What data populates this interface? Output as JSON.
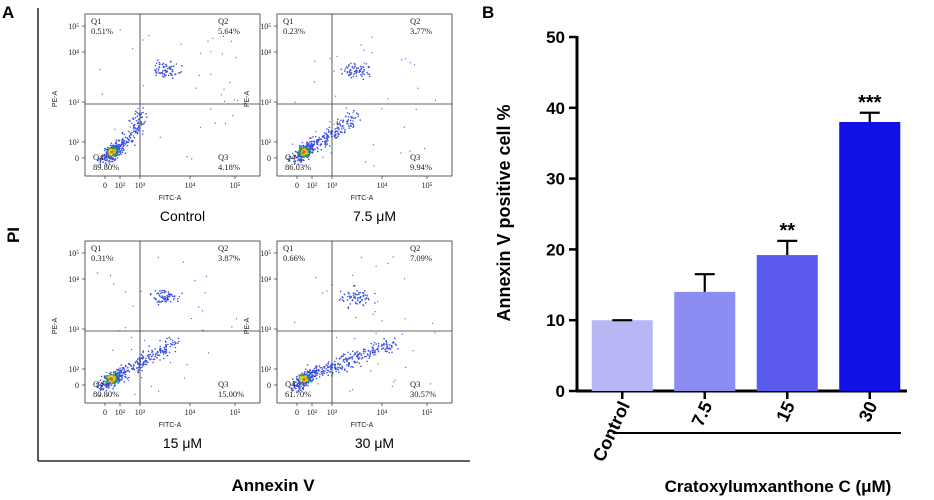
{
  "figure": {
    "panel_a_letter": "A",
    "panel_b_letter": "B"
  },
  "chart_data": [
    {
      "type": "scatter",
      "subtype": "flow-cytometry-quadrant-plots",
      "ylabel": "PI",
      "xlabel": "Annexin V",
      "plot_x_axis_name": "FITC-A",
      "plot_y_axis_name": "PE-A",
      "y_ticks": [
        "10⁵",
        "10⁴",
        "10³",
        "10²",
        "0"
      ],
      "x_ticks": [
        "0",
        "10²",
        "10³",
        "10⁴",
        "10⁵"
      ],
      "plots": [
        {
          "label": "Control",
          "Q1": "0.51%",
          "Q2": "5.64%",
          "Q3": "4.18%",
          "Q4": "89.80%"
        },
        {
          "label": "7.5 μM",
          "Q1": "0.23%",
          "Q2": "3.77%",
          "Q3": "9.94%",
          "Q4": "86.03%"
        },
        {
          "label": "15 μM",
          "Q1": "0.31%",
          "Q2": "3.87%",
          "Q3": "15.00%",
          "Q4": "80.80%"
        },
        {
          "label": "30 μM",
          "Q1": "0.66%",
          "Q2": "7.09%",
          "Q3": "30.57%",
          "Q4": "61.70%"
        }
      ]
    },
    {
      "type": "bar",
      "ylabel": "Annexin V positive cell %",
      "xlabel": "Cratoxylumxanthone C (μM)",
      "categories": [
        "Control",
        "7.5",
        "15",
        "30"
      ],
      "values": [
        10,
        14,
        19.2,
        38
      ],
      "errors": [
        0,
        2.5,
        2,
        1.3
      ],
      "significance": [
        "",
        "",
        "**",
        "***"
      ],
      "colors": [
        "#b7b7f6",
        "#8c8cf3",
        "#5a5aef",
        "#1111e6"
      ],
      "ylim": [
        0,
        50
      ],
      "yticks": [
        0,
        10,
        20,
        30,
        40,
        50
      ]
    }
  ]
}
